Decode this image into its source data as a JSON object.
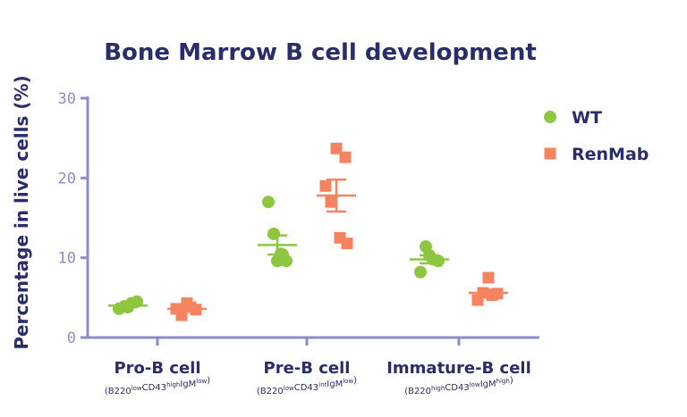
{
  "chart_data": {
    "type": "scatter",
    "title": "Bone Marrow B cell development",
    "ylabel": "Percentage in live cells (%)",
    "ylim": [
      0,
      30
    ],
    "yticks": [
      "0",
      "10",
      "20",
      "30"
    ],
    "categories": [
      {
        "label": "Pro-B cell",
        "subtitle": [
          {
            "t": "(B220",
            "sup": false
          },
          {
            "t": "low",
            "sup": true
          },
          {
            "t": "CD43",
            "sup": false
          },
          {
            "t": "high",
            "sup": true
          },
          {
            "t": "IgM",
            "sup": false
          },
          {
            "t": "low",
            "sup": true
          },
          {
            "t": ")",
            "sup": false
          }
        ]
      },
      {
        "label": "Pre-B cell",
        "subtitle": [
          {
            "t": "(B220",
            "sup": false
          },
          {
            "t": "low",
            "sup": true
          },
          {
            "t": "CD43",
            "sup": false
          },
          {
            "t": "int",
            "sup": true
          },
          {
            "t": "IgM",
            "sup": false
          },
          {
            "t": "low",
            "sup": true
          },
          {
            "t": ")",
            "sup": false
          }
        ]
      },
      {
        "label": "Immature-B cell",
        "subtitle": [
          {
            "t": "(B220",
            "sup": false
          },
          {
            "t": "high",
            "sup": true
          },
          {
            "t": "CD43",
            "sup": false
          },
          {
            "t": "low",
            "sup": true
          },
          {
            "t": "IgM",
            "sup": false
          },
          {
            "t": "high",
            "sup": true
          },
          {
            "t": ")",
            "sup": false
          }
        ]
      }
    ],
    "series": [
      {
        "name": "WT",
        "marker": "circle",
        "color": "#8dc63f",
        "values": [
          [
            3.6,
            3.9,
            4.3,
            4.5,
            3.8
          ],
          [
            17.0,
            13.0,
            10.5,
            9.6,
            9.6,
            10.4
          ],
          [
            8.2,
            11.4,
            9.8,
            9.6,
            10.3
          ]
        ],
        "mean": [
          4.0,
          11.6,
          9.8
        ],
        "sem": [
          0.2,
          1.2,
          0.5
        ]
      },
      {
        "name": "RenMab",
        "marker": "square",
        "color": "#f4845f",
        "values": [
          [
            4.3,
            3.5,
            3.6,
            2.8,
            3.8
          ],
          [
            23.7,
            22.6,
            19.0,
            17.0,
            12.5,
            11.8
          ],
          [
            7.5,
            5.5,
            4.7,
            5.6,
            5.3
          ]
        ],
        "mean": [
          3.6,
          17.8,
          5.6
        ],
        "sem": [
          0.3,
          2.0,
          0.4
        ]
      }
    ],
    "legend_position": "right",
    "grid": false,
    "axis_color": "#8b8fc7",
    "text_color": "#2b2d6b"
  }
}
